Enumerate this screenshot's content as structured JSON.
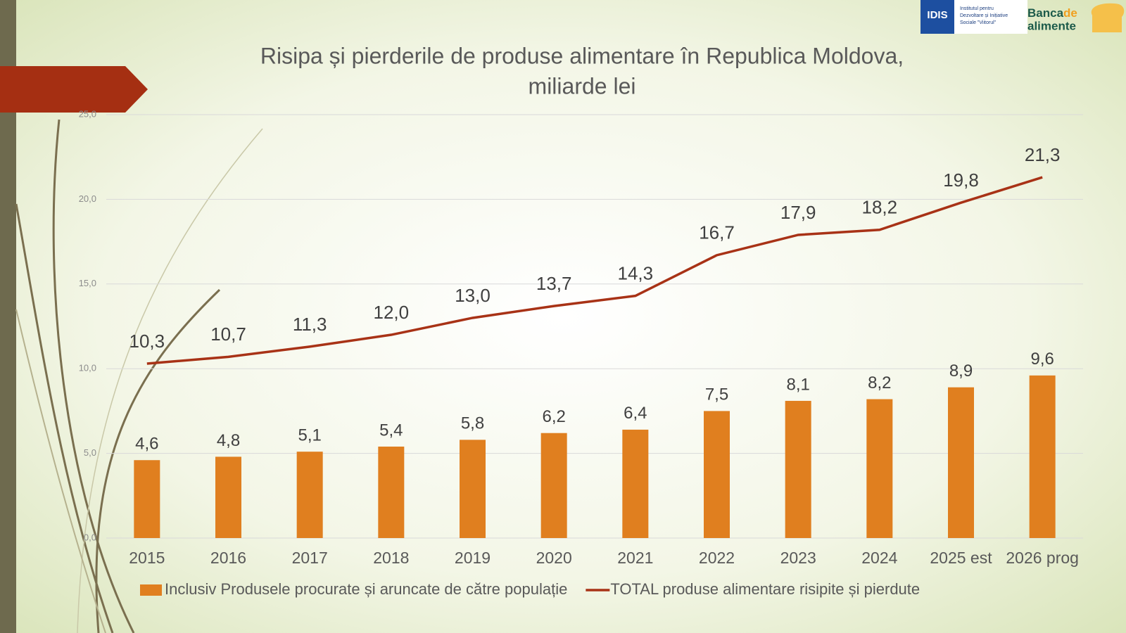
{
  "chart_data": {
    "type": "bar",
    "title": [
      "Risipa și pierderile de produse alimentare în Republica Moldova,",
      "miliarde lei"
    ],
    "categories": [
      "2015",
      "2016",
      "2017",
      "2018",
      "2019",
      "2020",
      "2021",
      "2022",
      "2023",
      "2024",
      "2025 est",
      "2026 prog"
    ],
    "series": [
      {
        "name": "Inclusiv Produsele procurate și aruncate de către populație",
        "type": "bar",
        "color": "#e07f1f",
        "values": [
          4.6,
          4.8,
          5.1,
          5.4,
          5.8,
          6.2,
          6.4,
          7.5,
          8.1,
          8.2,
          8.9,
          9.6
        ],
        "value_labels": [
          "4,6",
          "4,8",
          "5,1",
          "5,4",
          "5,8",
          "6,2",
          "6,4",
          "7,5",
          "8,1",
          "8,2",
          "8,9",
          "9,6"
        ]
      },
      {
        "name": "TOTAL produse alimentare risipite și pierdute",
        "type": "line",
        "color": "#a83216",
        "values": [
          10.3,
          10.7,
          11.3,
          12.0,
          13.0,
          13.7,
          14.3,
          16.7,
          17.9,
          18.2,
          19.8,
          21.3
        ],
        "value_labels": [
          "10,3",
          "10,7",
          "11,3",
          "12,0",
          "13,0",
          "13,7",
          "14,3",
          "16,7",
          "17,9",
          "18,2",
          "19,8",
          "21,3"
        ]
      }
    ],
    "ylim": [
      0,
      25
    ],
    "yticks": [
      {
        "value": 0,
        "label": "0,0"
      },
      {
        "value": 5,
        "label": "5,0"
      },
      {
        "value": 10,
        "label": "10,0"
      },
      {
        "value": 15,
        "label": "15,0"
      },
      {
        "value": 20,
        "label": "20,0"
      },
      {
        "value": 25,
        "label": "25,0"
      }
    ],
    "grid": true,
    "legend": "bottom"
  },
  "logos": {
    "idis": "IDIS",
    "idis_name": [
      "Institutul pentru",
      "Dezvoltare și Inițiative",
      "Sociale \"Viitorul\""
    ],
    "banca": [
      "Banca",
      "de",
      "alimente"
    ]
  }
}
